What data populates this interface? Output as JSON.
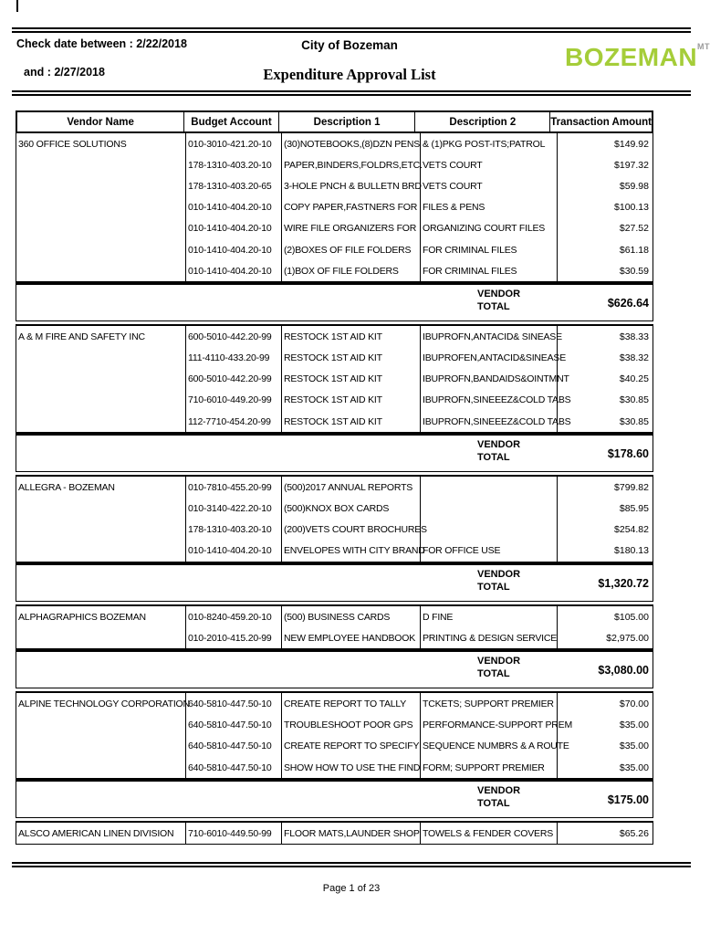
{
  "header": {
    "check_date_line": "Check date between : 2/22/2018",
    "check_date_and_line": "and : 2/27/2018",
    "organization": "City of Bozeman",
    "report_title": "Expenditure Approval List",
    "logo_text": "BOZEMAN",
    "logo_superscript": "MT",
    "logo_color": "#a5cd39",
    "logo_mt_color": "#9b9b9b"
  },
  "table": {
    "columns": [
      "Vendor Name",
      "Budget Account",
      "Description 1",
      "Description 2",
      "Transaction Amount"
    ],
    "vendor_total_label_line1": "VENDOR",
    "vendor_total_label_line2": "TOTAL",
    "vendors": [
      {
        "name": "360 OFFICE SOLUTIONS",
        "rows": [
          {
            "account": "010-3010-421.20-10",
            "desc1": "(30)NOTEBOOKS,(8)DZN PENS",
            "desc2": "& (1)PKG POST-ITS;PATROL",
            "amount": "$149.92"
          },
          {
            "account": "178-1310-403.20-10",
            "desc1": "PAPER,BINDERS,FOLDRS,ETC.",
            "desc2": "VETS COURT",
            "amount": "$197.32"
          },
          {
            "account": "178-1310-403.20-65",
            "desc1": "3-HOLE PNCH & BULLETN BRD",
            "desc2": "VETS COURT",
            "amount": "$59.98"
          },
          {
            "account": "010-1410-404.20-10",
            "desc1": "COPY PAPER,FASTNERS FOR",
            "desc2": "FILES & PENS",
            "amount": "$100.13"
          },
          {
            "account": "010-1410-404.20-10",
            "desc1": "WIRE FILE ORGANIZERS FOR",
            "desc2": "ORGANIZING COURT FILES",
            "amount": "$27.52"
          },
          {
            "account": "010-1410-404.20-10",
            "desc1": "(2)BOXES OF FILE FOLDERS",
            "desc2": "FOR CRIMINAL FILES",
            "amount": "$61.18"
          },
          {
            "account": "010-1410-404.20-10",
            "desc1": "(1)BOX OF FILE FOLDERS",
            "desc2": "FOR CRIMINAL FILES",
            "amount": "$30.59"
          }
        ],
        "total": "$626.64"
      },
      {
        "name": "A & M FIRE AND SAFETY INC",
        "rows": [
          {
            "account": "600-5010-442.20-99",
            "desc1": "RESTOCK 1ST AID KIT",
            "desc2": "IBUPROFN,ANTACID& SINEASE",
            "amount": "$38.33"
          },
          {
            "account": "111-4110-433.20-99",
            "desc1": "RESTOCK 1ST AID KIT",
            "desc2": "IBUPROFEN,ANTACID&SINEASE",
            "amount": "$38.32"
          },
          {
            "account": "600-5010-442.20-99",
            "desc1": "RESTOCK 1ST AID KIT",
            "desc2": "IBUPROFN,BANDAIDS&OINTMNT",
            "amount": "$40.25"
          },
          {
            "account": "710-6010-449.20-99",
            "desc1": "RESTOCK 1ST AID KIT",
            "desc2": "IBUPROFN,SINEEEZ&COLD TABS",
            "amount": "$30.85"
          },
          {
            "account": "112-7710-454.20-99",
            "desc1": "RESTOCK 1ST AID KIT",
            "desc2": "IBUPROFN,SINEEEZ&COLD TABS",
            "amount": "$30.85"
          }
        ],
        "total": "$178.60"
      },
      {
        "name": "ALLEGRA - BOZEMAN",
        "rows": [
          {
            "account": "010-7810-455.20-99",
            "desc1": "(500)2017 ANNUAL REPORTS",
            "desc2": "",
            "amount": "$799.82"
          },
          {
            "account": "010-3140-422.20-10",
            "desc1": "(500)KNOX BOX CARDS",
            "desc2": "",
            "amount": "$85.95"
          },
          {
            "account": "178-1310-403.20-10",
            "desc1": "(200)VETS COURT BROCHURES",
            "desc2": "",
            "amount": "$254.82"
          },
          {
            "account": "010-1410-404.20-10",
            "desc1": "ENVELOPES WITH CITY BRAND",
            "desc2": "FOR OFFICE USE",
            "amount": "$180.13"
          }
        ],
        "total": "$1,320.72"
      },
      {
        "name": "ALPHAGRAPHICS BOZEMAN",
        "rows": [
          {
            "account": "010-8240-459.20-10",
            "desc1": "(500) BUSINESS CARDS",
            "desc2": "D FINE",
            "amount": "$105.00"
          },
          {
            "account": "010-2010-415.20-99",
            "desc1": "NEW EMPLOYEE HANDBOOK",
            "desc2": "PRINTING & DESIGN SERVICE",
            "amount": "$2,975.00"
          }
        ],
        "total": "$3,080.00"
      },
      {
        "name": "ALPINE TECHNOLOGY CORPORATION",
        "rows": [
          {
            "account": "640-5810-447.50-10",
            "desc1": "CREATE REPORT TO TALLY",
            "desc2": "TCKETS; SUPPORT PREMIER",
            "amount": "$70.00"
          },
          {
            "account": "640-5810-447.50-10",
            "desc1": "TROUBLESHOOT POOR GPS",
            "desc2": "PERFORMANCE-SUPPORT PREM",
            "amount": "$35.00"
          },
          {
            "account": "640-5810-447.50-10",
            "desc1": "CREATE REPORT TO SPECIFY",
            "desc2": "SEQUENCE NUMBRS & A ROUTE",
            "amount": "$35.00"
          },
          {
            "account": "640-5810-447.50-10",
            "desc1": "SHOW HOW TO USE THE FIND",
            "desc2": "FORM; SUPPORT PREMIER",
            "amount": "$35.00"
          }
        ],
        "total": "$175.00"
      },
      {
        "name": "ALSCO AMERICAN LINEN DIVISION",
        "rows": [
          {
            "account": "710-6010-449.50-99",
            "desc1": "FLOOR MATS,LAUNDER SHOP",
            "desc2": "TOWELS & FENDER COVERS",
            "amount": "$65.26"
          }
        ],
        "total": null
      }
    ]
  },
  "footer": {
    "page_label": "Page 1 of 23"
  }
}
